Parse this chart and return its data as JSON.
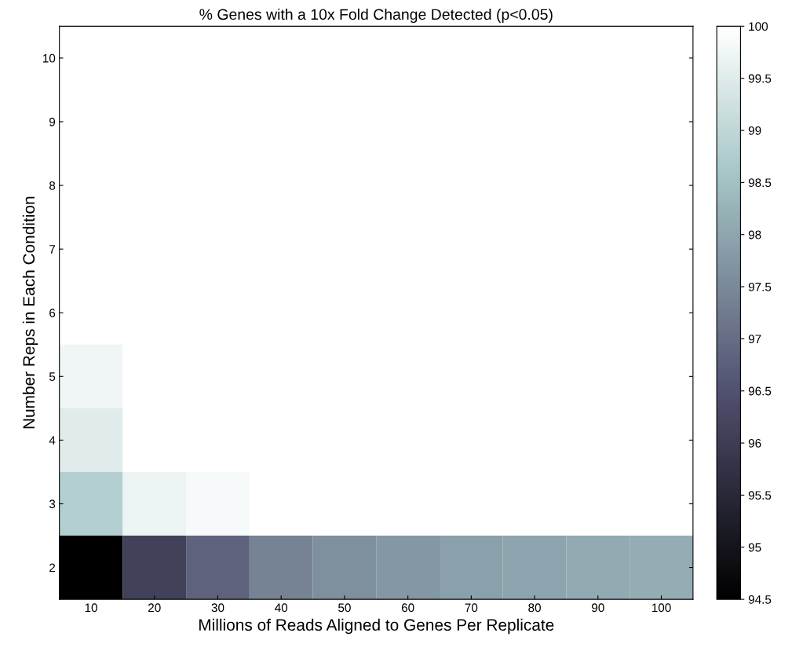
{
  "chart_data": {
    "type": "heatmap",
    "title": "% Genes with a 10x Fold Change Detected (p<0.05)",
    "xlabel": "Millions of Reads Aligned to Genes Per Replicate",
    "ylabel": "Number Reps in Each Condition",
    "categories": [
      "10",
      "20",
      "30",
      "40",
      "50",
      "60",
      "70",
      "80",
      "90",
      "100"
    ],
    "y_categories": [
      "10",
      "9",
      "8",
      "7",
      "6",
      "5",
      "4",
      "3",
      "2"
    ],
    "cells": [
      [
        100,
        100,
        100,
        100,
        100,
        100,
        100,
        100,
        100,
        100
      ],
      [
        100,
        100,
        100,
        100,
        100,
        100,
        100,
        100,
        100,
        100
      ],
      [
        100,
        100,
        100,
        100,
        100,
        100,
        100,
        100,
        100,
        100
      ],
      [
        100,
        100,
        100,
        100,
        100,
        100,
        100,
        100,
        100,
        100
      ],
      [
        100,
        100,
        100,
        100,
        100,
        100,
        100,
        100,
        100,
        100
      ],
      [
        99.75,
        100,
        100,
        100,
        100,
        100,
        100,
        100,
        100,
        100
      ],
      [
        99.5,
        100,
        100,
        100,
        100,
        100,
        100,
        100,
        100,
        100
      ],
      [
        98.8,
        99.7,
        99.85,
        100,
        100,
        100,
        100,
        100,
        100,
        100
      ],
      [
        94.5,
        96.1,
        96.8,
        97.4,
        97.6,
        97.75,
        97.9,
        98.0,
        98.1,
        98.15
      ]
    ],
    "clim": [
      94.5,
      100
    ],
    "cticks": [
      94.5,
      95,
      95.5,
      96,
      96.5,
      97,
      97.5,
      98,
      98.5,
      99,
      99.5,
      100
    ]
  }
}
